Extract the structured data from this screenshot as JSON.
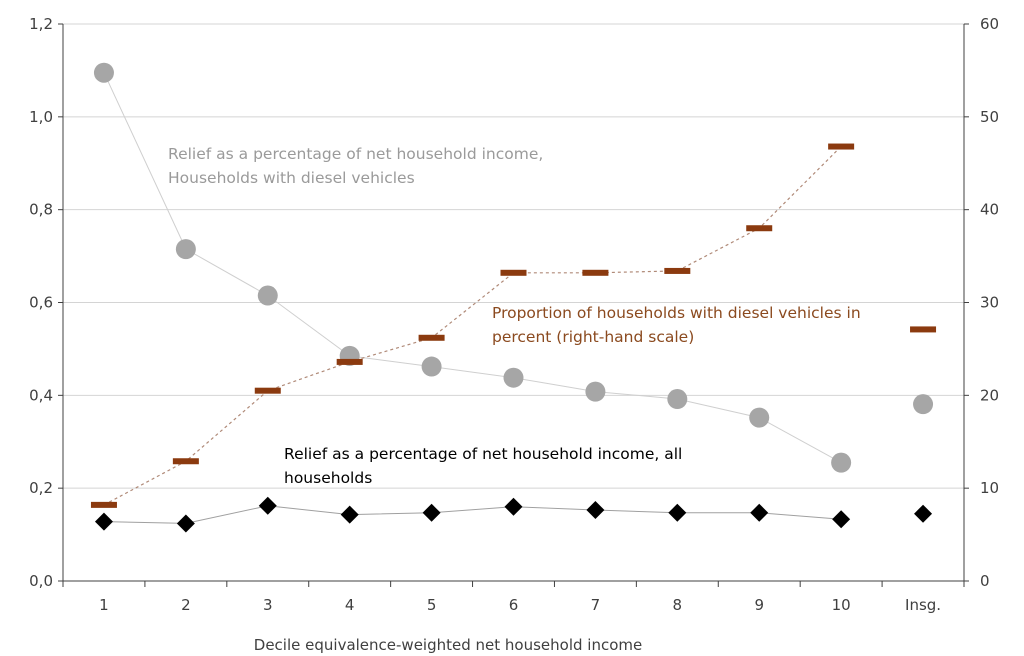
{
  "chart_data": {
    "type": "line",
    "categories": [
      "1",
      "2",
      "3",
      "4",
      "5",
      "6",
      "7",
      "8",
      "9",
      "10",
      "Insg."
    ],
    "xlabel": "Decile equivalence-weighted net household income",
    "ylabel": "",
    "ylim": [
      0,
      1.2
    ],
    "y_ticks": [
      "0,0",
      "0,2",
      "0,4",
      "0,6",
      "0,8",
      "1,0",
      "1,2"
    ],
    "y2lim": [
      0,
      60
    ],
    "y2_ticks": [
      "0",
      "10",
      "20",
      "30",
      "40",
      "50",
      "60"
    ],
    "grid": true,
    "series": [
      {
        "name": "Relief as a percentage of net household income, Households with diesel vehicles",
        "axis": "left",
        "values": [
          1.095,
          0.715,
          0.615,
          0.485,
          0.462,
          0.438,
          0.408,
          0.392,
          0.352,
          0.255,
          0.381
        ],
        "color": "#a6a6a6",
        "marker": "circle"
      },
      {
        "name": "Proportion of households with diesel vehicles in percent (right-hand scale)",
        "axis": "right",
        "values": [
          8.2,
          12.9,
          20.5,
          23.6,
          26.2,
          33.2,
          33.2,
          33.4,
          38.0,
          46.8,
          27.1
        ],
        "color": "#8b3a0f",
        "marker": "dash"
      },
      {
        "name": "Relief as a percentage of net household income, all households",
        "axis": "left",
        "values": [
          0.128,
          0.124,
          0.162,
          0.143,
          0.147,
          0.16,
          0.153,
          0.147,
          0.147,
          0.133,
          0.145
        ],
        "color": "#000000",
        "marker": "diamond"
      }
    ],
    "annotations": [
      {
        "lines": [
          "Relief as a percentage of net household income,",
          "Households with diesel vehicles"
        ],
        "color": "#9a9a9a"
      },
      {
        "lines": [
          "Proportion of households with diesel vehicles in",
          "percent (right-hand scale)"
        ],
        "color": "#8b4a1f"
      },
      {
        "lines": [
          "Relief as a percentage of net household income, all",
          "households"
        ],
        "color": "#000000"
      }
    ]
  }
}
